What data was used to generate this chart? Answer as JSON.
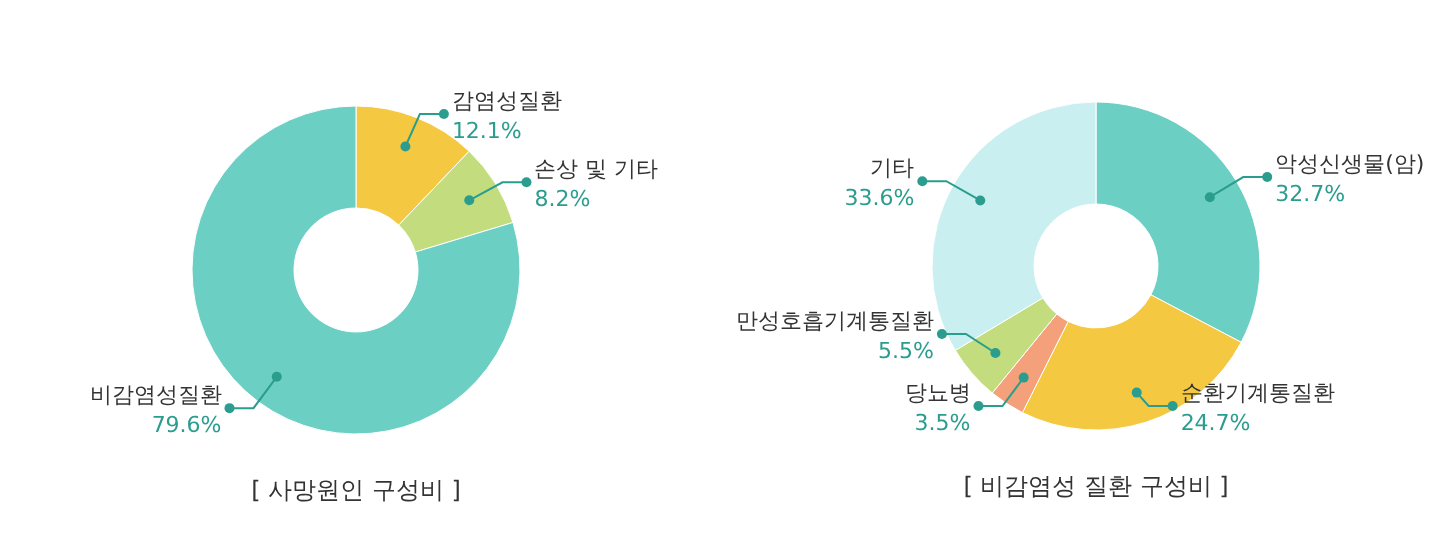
{
  "chart_data": [
    {
      "type": "donut",
      "title": "[ 사망원인 구성비 ]",
      "categories": [
        "감염성질환",
        "손상 및 기타",
        "비감염성질환"
      ],
      "values": [
        12.1,
        8.2,
        79.6
      ],
      "value_labels": [
        "12.1%",
        "8.2%",
        "79.6%"
      ],
      "colors": [
        "#f5c842",
        "#c2dc7e",
        "#6ccfc4"
      ]
    },
    {
      "type": "donut",
      "title": "[ 비감염성 질환 구성비 ]",
      "categories": [
        "악성신생물(암)",
        "순환기계통질환",
        "당뇨병",
        "만성호흡기계통질환",
        "기타"
      ],
      "values": [
        32.7,
        24.7,
        3.5,
        5.5,
        33.6
      ],
      "value_labels": [
        "32.7%",
        "24.7%",
        "3.5%",
        "5.5%",
        "33.6%"
      ],
      "colors": [
        "#6ccfc4",
        "#f5c842",
        "#f4a07a",
        "#c2dc7e",
        "#c9eff0"
      ]
    }
  ]
}
